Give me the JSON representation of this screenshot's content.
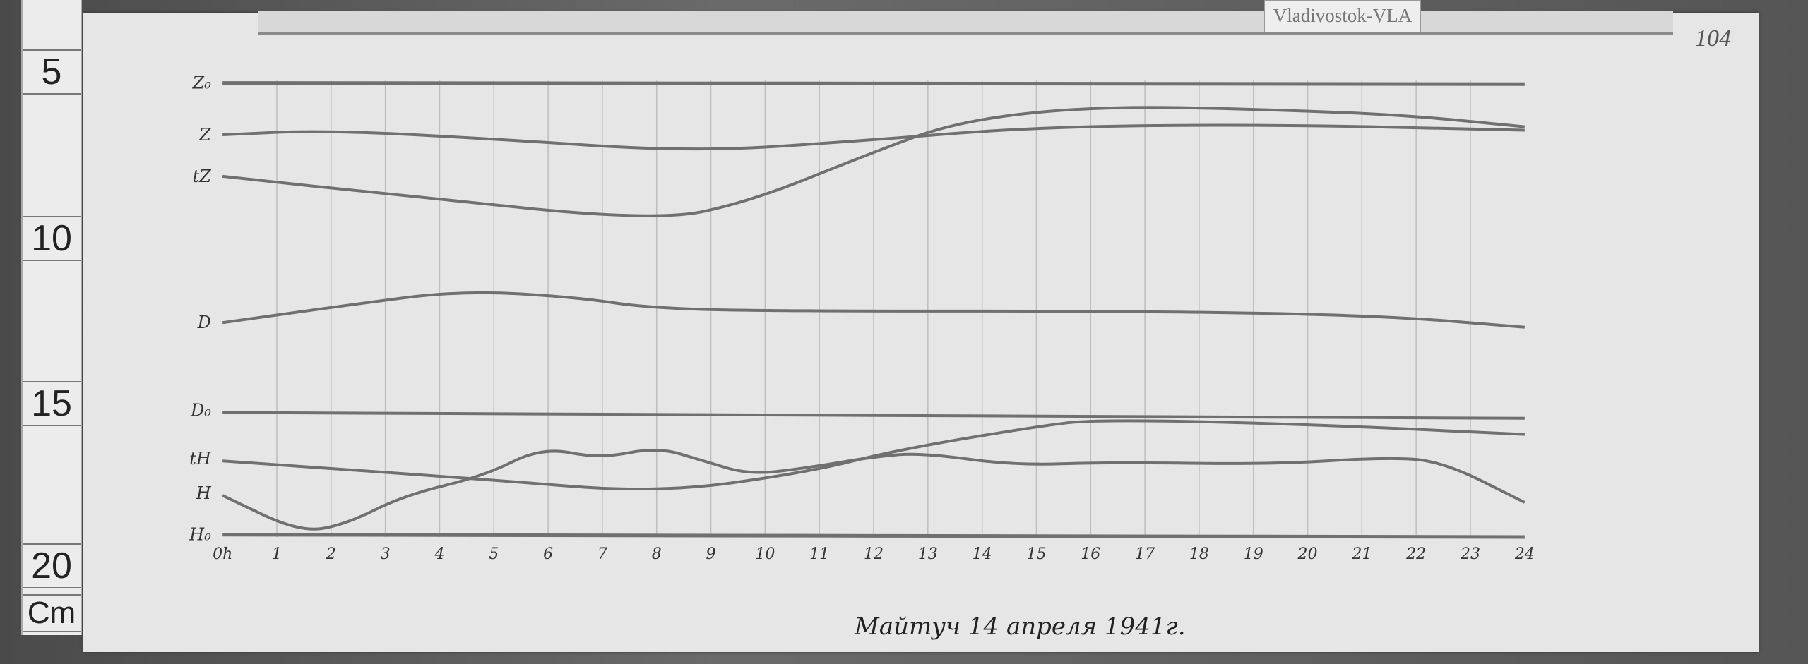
{
  "tag": "Vladivostok-VLA",
  "page_number": "104",
  "ruler": {
    "marks": [
      "5",
      "10",
      "15",
      "20"
    ],
    "unit": "Cm"
  },
  "caption": "Майтуч 14 апреля 1941г.",
  "chart_data": {
    "type": "line",
    "title": "Майтуч 14 апреля 1941г.",
    "xlabel": "",
    "ylabel": "",
    "x_ticks": [
      "0h",
      "1",
      "2",
      "3",
      "4",
      "5",
      "6",
      "7",
      "8",
      "9",
      "10",
      "11",
      "12",
      "13",
      "14",
      "15",
      "16",
      "17",
      "18",
      "19",
      "20",
      "21",
      "22",
      "23",
      "24"
    ],
    "xlim": [
      0,
      24
    ],
    "grid": "vertical hourly lines",
    "trace_labels": [
      "Z₀",
      "Z",
      "tZ",
      "D",
      "D₀",
      "tH",
      "H",
      "H₀"
    ],
    "colors": {
      "trace": "#707070",
      "paper": "#e6e6e6",
      "grid": "#bdbdbd"
    }
  }
}
